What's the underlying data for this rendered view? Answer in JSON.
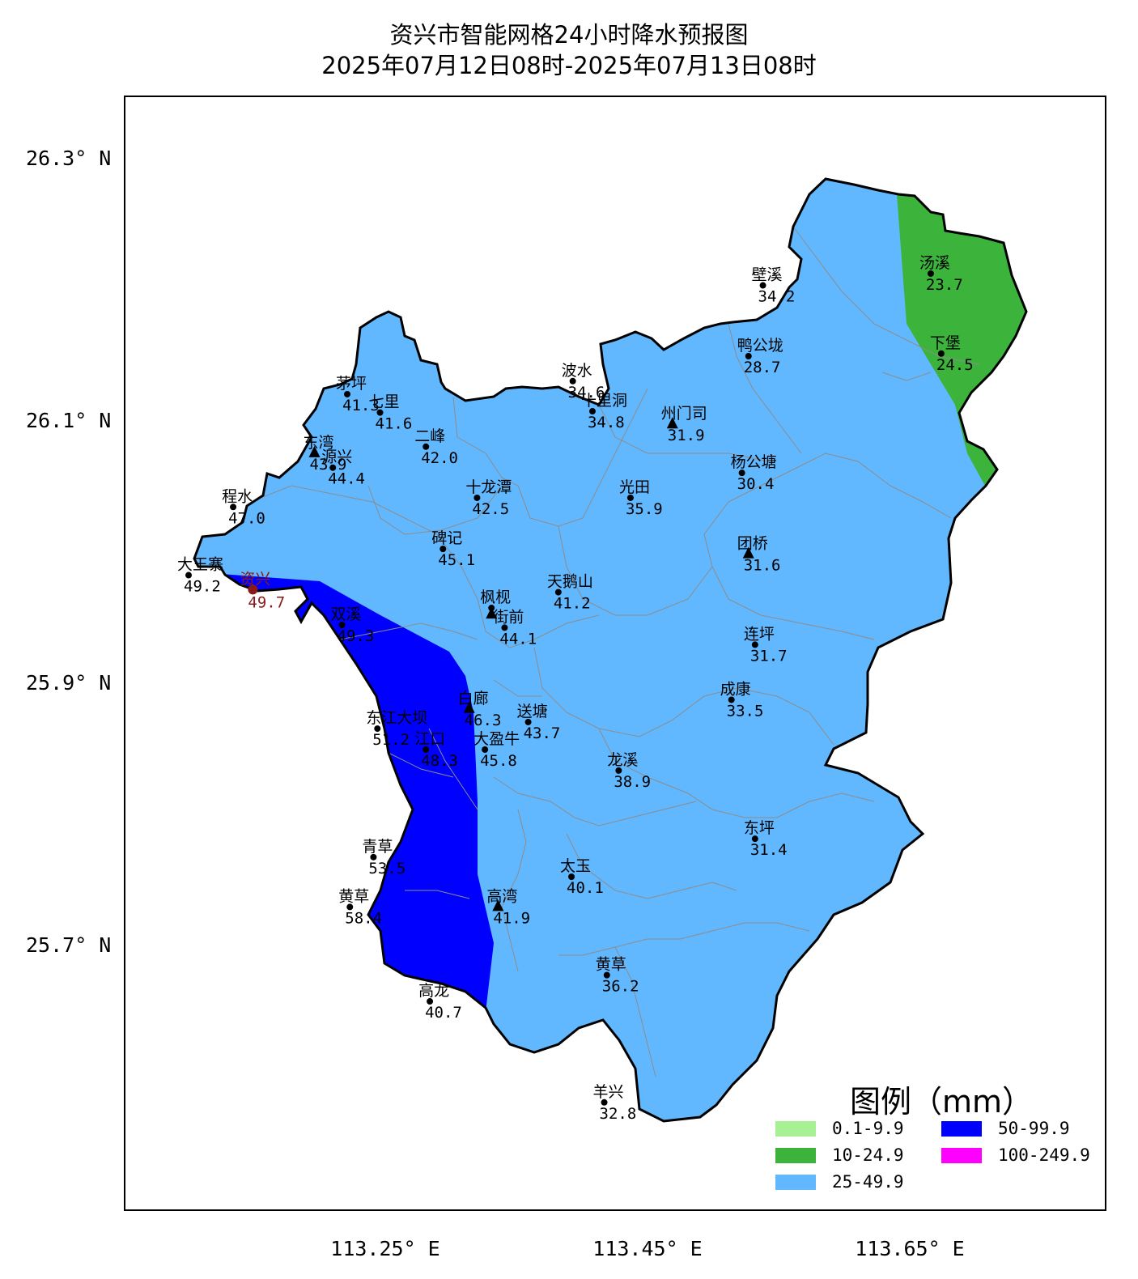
{
  "title": "资兴市智能网格24小时降水预报图",
  "subtitle": "2025年07月12日08时-2025年07月13日08时",
  "lat_labels": [
    {
      "text": "26.3° N",
      "value": 26.3
    },
    {
      "text": "26.1° N",
      "value": 26.1
    },
    {
      "text": "25.9° N",
      "value": 25.9
    },
    {
      "text": "25.7° N",
      "value": 25.7
    }
  ],
  "lon_labels": [
    {
      "text": "113.25° E",
      "value": 113.25
    },
    {
      "text": "113.45° E",
      "value": 113.45
    },
    {
      "text": "113.65° E",
      "value": 113.65
    }
  ],
  "colors": {
    "c_0_1_9_9": "#a8f094",
    "c_10_24_9": "#3cb43c",
    "c_25_49_9": "#61b8ff",
    "c_50_99_9": "#0000ff",
    "c_100_249_9": "#ff00ff",
    "border": "#000000",
    "township_lines": "#8c8c8c",
    "city_label": "#8b1a1a"
  },
  "legend": {
    "title": "图例（mm）",
    "items": [
      {
        "label": "0.1-9.9",
        "color": "#a8f094"
      },
      {
        "label": "10-24.9",
        "color": "#3cb43c"
      },
      {
        "label": "25-49.9",
        "color": "#61b8ff"
      },
      {
        "label": "50-99.9",
        "color": "#0000ff"
      },
      {
        "label": "100-249.9",
        "color": "#ff00ff"
      }
    ]
  },
  "stations": [
    {
      "name": "汤溪",
      "value": "23.7",
      "lon": 113.666,
      "lat": 26.213,
      "marker": "dot"
    },
    {
      "name": "壁溪",
      "value": "34.2",
      "lon": 113.538,
      "lat": 26.204,
      "marker": "dot"
    },
    {
      "name": "下堡",
      "value": "24.5",
      "lon": 113.674,
      "lat": 26.152,
      "marker": "dot"
    },
    {
      "name": "鸭公垅",
      "value": "28.7",
      "lon": 113.527,
      "lat": 26.15,
      "marker": "dot"
    },
    {
      "name": "波水",
      "value": "34.6",
      "lon": 113.393,
      "lat": 26.131,
      "marker": "dot"
    },
    {
      "name": "十里洞",
      "value": "34.8",
      "lon": 113.408,
      "lat": 26.108,
      "marker": "dot"
    },
    {
      "name": "州门司",
      "value": "31.9",
      "lon": 113.469,
      "lat": 26.098,
      "marker": "triangle"
    },
    {
      "name": "茅坪",
      "value": "41.3",
      "lon": 113.221,
      "lat": 26.121,
      "marker": "dot"
    },
    {
      "name": "七里",
      "value": "41.6",
      "lon": 113.246,
      "lat": 26.107,
      "marker": "dot"
    },
    {
      "name": "二峰",
      "value": "42.0",
      "lon": 113.281,
      "lat": 26.081,
      "marker": "dot"
    },
    {
      "name": "东湾",
      "value": "43.9",
      "lon": 113.196,
      "lat": 26.076,
      "marker": "triangle"
    },
    {
      "name": "源兴",
      "value": "44.4",
      "lon": 113.21,
      "lat": 26.065,
      "marker": "dot"
    },
    {
      "name": "杨公塘",
      "value": "30.4",
      "lon": 113.522,
      "lat": 26.061,
      "marker": "dot"
    },
    {
      "name": "十龙潭",
      "value": "42.5",
      "lon": 113.32,
      "lat": 26.042,
      "marker": "dot"
    },
    {
      "name": "光田",
      "value": "35.9",
      "lon": 113.437,
      "lat": 26.042,
      "marker": "dot"
    },
    {
      "name": "程水",
      "value": "47.0",
      "lon": 113.134,
      "lat": 26.035,
      "marker": "dot"
    },
    {
      "name": "碑记",
      "value": "45.1",
      "lon": 113.294,
      "lat": 26.003,
      "marker": "dot"
    },
    {
      "name": "团桥",
      "value": "31.6",
      "lon": 113.527,
      "lat": 25.999,
      "marker": "triangle"
    },
    {
      "name": "大王寨",
      "value": "49.2",
      "lon": 113.1,
      "lat": 25.983,
      "marker": "dot"
    },
    {
      "name": "资兴",
      "value": "49.7",
      "lon": 113.149,
      "lat": 25.972,
      "marker": "city"
    },
    {
      "name": "天鹅山",
      "value": "41.2",
      "lon": 113.382,
      "lat": 25.97,
      "marker": "dot"
    },
    {
      "name": "枫枧",
      "value": "",
      "lon": 113.331,
      "lat": 25.958,
      "marker": "dot"
    },
    {
      "name": "",
      "value": "",
      "lon": 113.331,
      "lat": 25.953,
      "marker": "triangle"
    },
    {
      "name": "街前",
      "value": "44.1",
      "lon": 113.341,
      "lat": 25.943,
      "marker": "dot"
    },
    {
      "name": "双溪",
      "value": "49.3",
      "lon": 113.217,
      "lat": 25.945,
      "marker": "dot"
    },
    {
      "name": "连坪",
      "value": "31.7",
      "lon": 113.532,
      "lat": 25.93,
      "marker": "dot"
    },
    {
      "name": "成康",
      "value": "33.5",
      "lon": 113.514,
      "lat": 25.888,
      "marker": "dot"
    },
    {
      "name": "白廊",
      "value": "46.3",
      "lon": 113.314,
      "lat": 25.881,
      "marker": "triangle"
    },
    {
      "name": "送塘",
      "value": "43.7",
      "lon": 113.359,
      "lat": 25.871,
      "marker": "dot"
    },
    {
      "name": "东江大坝",
      "value": "51.2",
      "lon": 113.244,
      "lat": 25.866,
      "marker": "dot"
    },
    {
      "name": "江口",
      "value": "48.3",
      "lon": 113.281,
      "lat": 25.85,
      "marker": "dot"
    },
    {
      "name": "大盈牛",
      "value": "45.8",
      "lon": 113.326,
      "lat": 25.85,
      "marker": "dot"
    },
    {
      "name": "龙溪",
      "value": "38.9",
      "lon": 113.428,
      "lat": 25.834,
      "marker": "dot"
    },
    {
      "name": "东坪",
      "value": "31.4",
      "lon": 113.532,
      "lat": 25.782,
      "marker": "dot"
    },
    {
      "name": "青草",
      "value": "53.5",
      "lon": 113.241,
      "lat": 25.768,
      "marker": "dot"
    },
    {
      "name": "太玉",
      "value": "40.1",
      "lon": 113.392,
      "lat": 25.753,
      "marker": "dot"
    },
    {
      "name": "黄草",
      "value": "58.4",
      "lon": 113.223,
      "lat": 25.73,
      "marker": "dot"
    },
    {
      "name": "高湾",
      "value": "41.9",
      "lon": 113.336,
      "lat": 25.73,
      "marker": "triangle"
    },
    {
      "name": "黄草",
      "value": "36.2",
      "lon": 113.419,
      "lat": 25.678,
      "marker": "dot"
    },
    {
      "name": "高龙",
      "value": "40.7",
      "lon": 113.284,
      "lat": 25.658,
      "marker": "dot"
    },
    {
      "name": "羊兴",
      "value": "32.8",
      "lon": 113.417,
      "lat": 25.581,
      "marker": "dot"
    }
  ]
}
